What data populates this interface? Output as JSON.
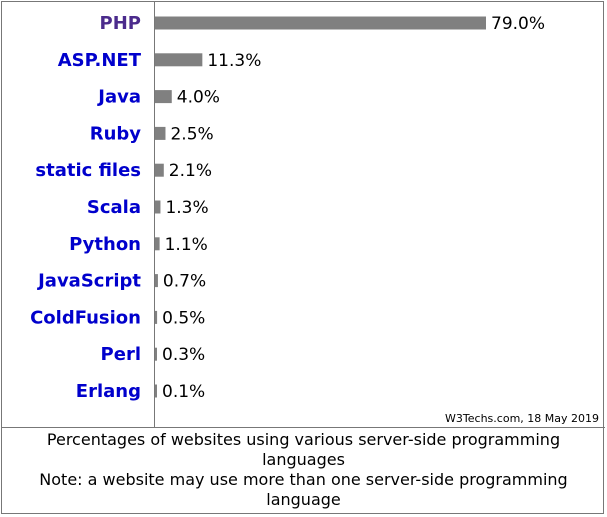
{
  "chart_data": {
    "type": "bar",
    "orientation": "horizontal",
    "categories": [
      "PHP",
      "ASP.NET",
      "Java",
      "Ruby",
      "static files",
      "Scala",
      "Python",
      "JavaScript",
      "ColdFusion",
      "Perl",
      "Erlang"
    ],
    "values": [
      79.0,
      11.3,
      4.0,
      2.5,
      2.1,
      1.3,
      1.1,
      0.7,
      0.5,
      0.3,
      0.1
    ],
    "value_labels": [
      "79.0%",
      "11.3%",
      "4.0%",
      "2.5%",
      "2.1%",
      "1.3%",
      "1.1%",
      "0.7%",
      "0.5%",
      "0.3%",
      "0.1%"
    ],
    "highlighted_category": "PHP",
    "xlim": [
      0,
      79.0
    ],
    "grid": false,
    "legend": "none"
  },
  "colors": {
    "bar": "#808080",
    "label": "#0000cc",
    "label_highlight": "#4b2b8c",
    "border": "#777777"
  },
  "credit": "W3Techs.com, 18 May 2019",
  "caption": {
    "line1": "Percentages of websites using various server-side programming languages",
    "line2": "Note: a website may use more than one server-side programming language"
  }
}
